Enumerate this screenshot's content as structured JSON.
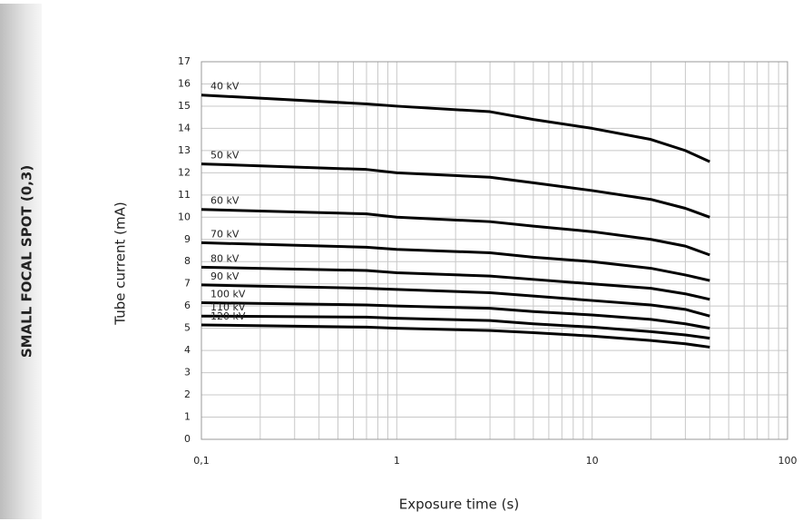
{
  "chart_data": {
    "type": "line",
    "side_label": "SMALL FOCAL SPOT (0,3)",
    "x_label": "Exposure time (s)",
    "y_label": "Tube current (mA)",
    "x": [
      0.1,
      0.7,
      1,
      3,
      5,
      10,
      20,
      30,
      40
    ],
    "series": [
      {
        "name": "40 kV",
        "color": "#000000",
        "values": [
          15.5,
          15.1,
          15.0,
          14.75,
          14.4,
          14.0,
          13.5,
          13.0,
          12.5
        ]
      },
      {
        "name": "50 kV",
        "color": "#000000",
        "values": [
          12.4,
          12.15,
          12.0,
          11.8,
          11.55,
          11.2,
          10.8,
          10.4,
          10.0
        ]
      },
      {
        "name": "60 kV",
        "color": "#000000",
        "values": [
          10.35,
          10.15,
          10.0,
          9.8,
          9.6,
          9.35,
          9.0,
          8.7,
          8.3
        ]
      },
      {
        "name": "70 kV",
        "color": "#000000",
        "values": [
          8.85,
          8.65,
          8.55,
          8.4,
          8.2,
          8.0,
          7.7,
          7.4,
          7.15
        ]
      },
      {
        "name": "80 kV",
        "color": "#000000",
        "values": [
          7.75,
          7.6,
          7.5,
          7.35,
          7.2,
          7.0,
          6.8,
          6.55,
          6.3
        ]
      },
      {
        "name": "90 kV",
        "color": "#000000",
        "values": [
          6.95,
          6.8,
          6.75,
          6.6,
          6.45,
          6.25,
          6.05,
          5.85,
          5.55
        ]
      },
      {
        "name": "100 kV",
        "color": "#000000",
        "values": [
          6.15,
          6.05,
          6.0,
          5.9,
          5.75,
          5.6,
          5.4,
          5.2,
          5.0
        ]
      },
      {
        "name": "110 kV",
        "color": "#000000",
        "values": [
          5.55,
          5.5,
          5.45,
          5.35,
          5.2,
          5.05,
          4.85,
          4.7,
          4.55
        ]
      },
      {
        "name": "120 kV",
        "color": "#000000",
        "values": [
          5.15,
          5.05,
          5.0,
          4.9,
          4.8,
          4.65,
          4.45,
          4.3,
          4.15
        ]
      }
    ],
    "xlim": [
      0.1,
      100
    ],
    "x_log": true,
    "xticks": [
      {
        "value": 0.1,
        "label": "0,1"
      },
      1,
      10,
      100
    ],
    "ylim": [
      0,
      17
    ],
    "yticks": [
      0,
      1,
      2,
      3,
      4,
      5,
      6,
      7,
      8,
      9,
      10,
      11,
      12,
      13,
      14,
      15,
      16,
      17
    ],
    "grid": true,
    "grid_color": "#c8c8c8"
  }
}
